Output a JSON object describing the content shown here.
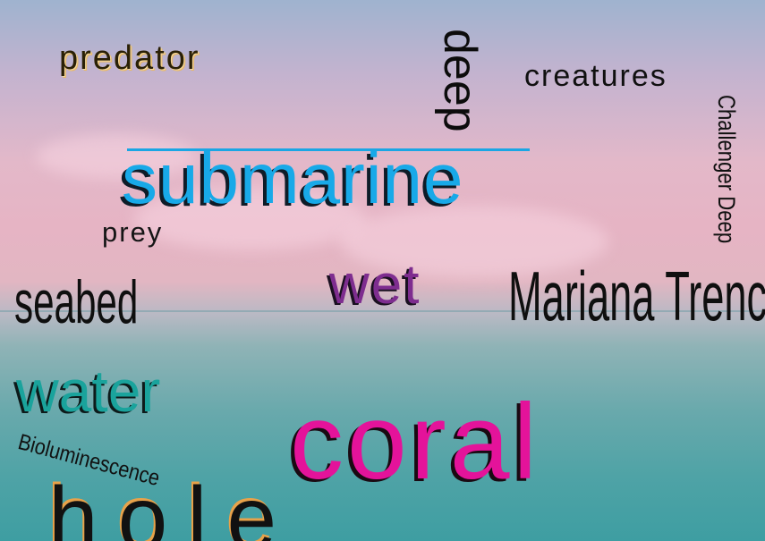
{
  "words": {
    "predator": "predator",
    "deep": "deep",
    "creatures": "creatures",
    "challenger_deep": "Challenger Deep",
    "submarine": "submarine",
    "prey": "prey",
    "wet": "wet",
    "mariana_trench": "Mariana Trench",
    "seabed": "seabed",
    "water": "water",
    "bioluminescence": "Bioluminescence",
    "coral": "coral",
    "hole": "hole"
  },
  "colors": {
    "submarine": "#18a9e8",
    "wet": "#7e2d8f",
    "water": "#1aa39c",
    "coral": "#e4139a",
    "hole_outline": "#e8a24a",
    "sky_top": "#9fb3cf",
    "sea": "#3e9ea2"
  }
}
